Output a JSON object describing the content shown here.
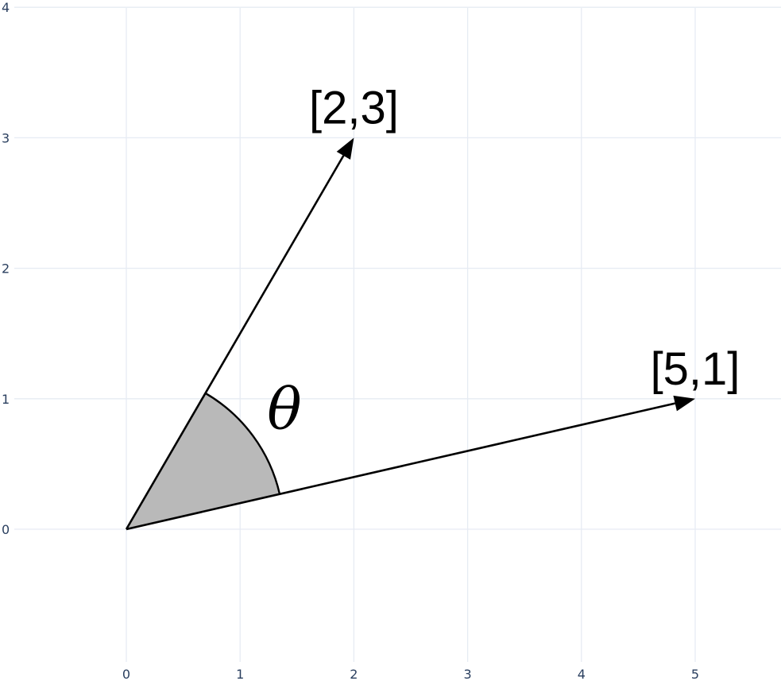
{
  "chart_data": {
    "type": "vector-diagram",
    "x_ticks": [
      "0",
      "1",
      "2",
      "3",
      "4",
      "5"
    ],
    "y_ticks": [
      "0",
      "1",
      "2",
      "3",
      "4"
    ],
    "xlim": [
      -1.1,
      5.7
    ],
    "ylim": [
      -1.1,
      4.0
    ],
    "grid": true,
    "vectors": [
      {
        "label": "[2,3]",
        "x": 2,
        "y": 3
      },
      {
        "label": "[5,1]",
        "x": 5,
        "y": 1
      }
    ],
    "angle_label": "θ",
    "colors": {
      "grid": "#e6ebf3",
      "tick_text": "#2a3f5f",
      "sector_fill": "#b9b9b9",
      "vector": "#000000"
    }
  }
}
